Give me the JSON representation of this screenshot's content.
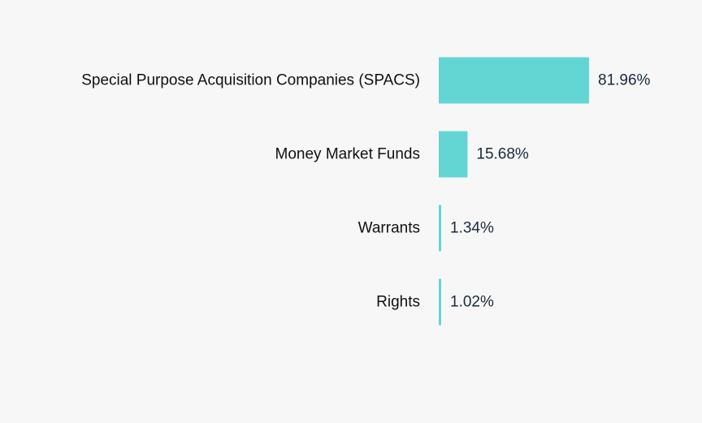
{
  "colors": {
    "background": "#f7f7f7",
    "bar": "#63d6d4",
    "category_text": "#111111",
    "value_text": "#1b2a3c"
  },
  "chart_data": {
    "type": "bar",
    "orientation": "horizontal",
    "categories": [
      "Special Purpose Acquisition Companies (SPACS)",
      "Money Market Funds",
      "Warrants",
      "Rights"
    ],
    "values": [
      81.96,
      15.68,
      1.34,
      1.02
    ],
    "value_labels": [
      "81.96%",
      "15.68%",
      "1.34%",
      "1.02%"
    ],
    "unit": "%",
    "title": "",
    "xlabel": "",
    "ylabel": "",
    "xlim": [
      0,
      100
    ],
    "grid": false,
    "legend": "none"
  }
}
